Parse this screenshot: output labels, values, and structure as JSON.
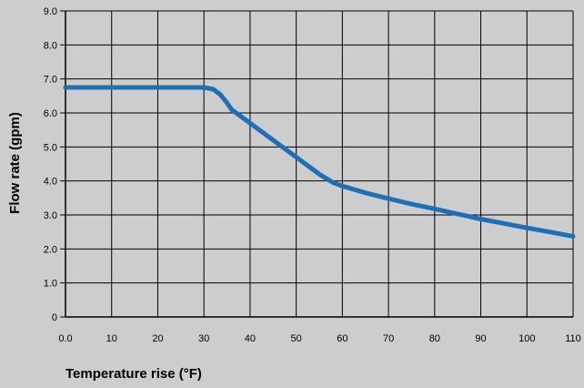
{
  "chart_data": {
    "type": "line",
    "title": "",
    "xlabel": "Temperature rise (°F)",
    "ylabel": "Flow rate (gpm)",
    "xlim": [
      0,
      110
    ],
    "ylim": [
      0,
      9
    ],
    "x_ticks": [
      "0.0",
      "10",
      "20",
      "30",
      "40",
      "50",
      "60",
      "70",
      "80",
      "90",
      "100",
      "110"
    ],
    "y_ticks": [
      "0",
      "1.0",
      "2.0",
      "3.0",
      "4.0",
      "5.0",
      "6.0",
      "7.0",
      "8.0",
      "9.0"
    ],
    "grid": true,
    "series_color": "#1f6fb6",
    "background": "#cdcdcd",
    "series": [
      {
        "x": [
          0,
          10,
          20,
          30,
          32,
          33.5,
          35,
          36,
          40,
          45,
          50,
          55,
          58,
          60,
          65,
          70,
          75,
          80,
          85,
          90,
          95,
          100,
          105,
          110
        ],
        "y": [
          6.75,
          6.75,
          6.75,
          6.75,
          6.7,
          6.55,
          6.3,
          6.1,
          5.7,
          5.2,
          4.7,
          4.2,
          3.95,
          3.85,
          3.65,
          3.48,
          3.32,
          3.18,
          3.03,
          2.88,
          2.75,
          2.62,
          2.5,
          2.37
        ]
      }
    ]
  }
}
